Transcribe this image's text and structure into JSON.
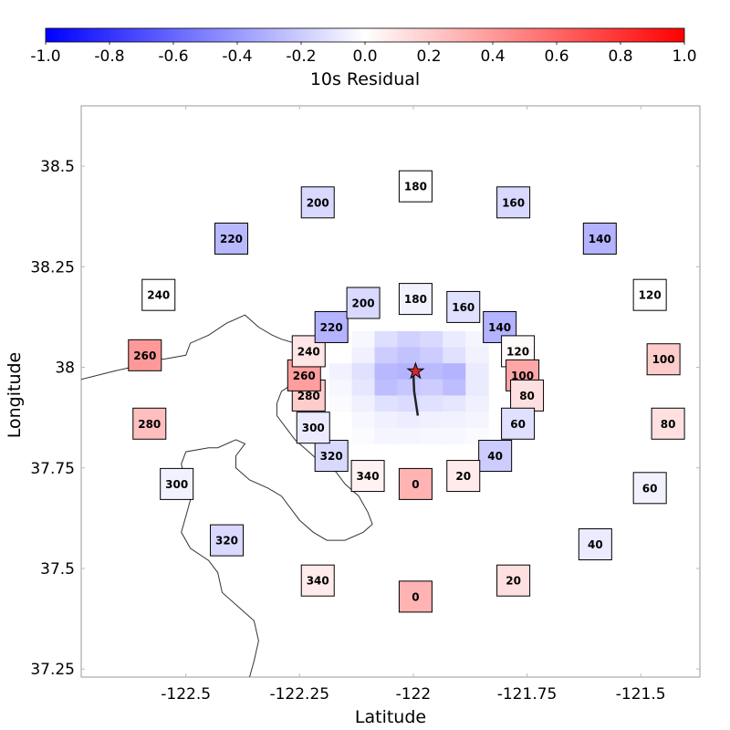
{
  "chart_data": {
    "type": "heatmap",
    "colorbar": {
      "label": "10s Residual",
      "range": [
        -1.0,
        1.0
      ],
      "ticks": [
        "-1.0",
        "-0.8",
        "-0.6",
        "-0.4",
        "-0.2",
        "0.0",
        "0.2",
        "0.4",
        "0.6",
        "0.8",
        "1.0"
      ],
      "colors": {
        "low": "#0000ff",
        "mid": "#ffffff",
        "high": "#ff0000"
      },
      "placement": "top"
    },
    "xlabel": "Latitude",
    "ylabel": "Longitude",
    "xlim": [
      -122.73,
      -121.37
    ],
    "ylim": [
      37.23,
      38.65
    ],
    "xticks": [
      {
        "value": -122.5,
        "label": "-122.5"
      },
      {
        "value": -122.25,
        "label": "-122.25"
      },
      {
        "value": -122.0,
        "label": "-122"
      },
      {
        "value": -121.75,
        "label": "-121.75"
      },
      {
        "value": -121.5,
        "label": "-121.5"
      }
    ],
    "yticks": [
      {
        "value": 38.5,
        "label": "38.5"
      },
      {
        "value": 38.25,
        "label": "38.25"
      },
      {
        "value": 38.0,
        "label": "38"
      },
      {
        "value": 37.75,
        "label": "37.75"
      },
      {
        "value": 37.5,
        "label": "37.5"
      },
      {
        "value": 37.25,
        "label": "37.25"
      }
    ],
    "epicenter": {
      "lon": -121.995,
      "lat": 37.99,
      "color": "#d62728"
    },
    "fault_trace": [
      [
        -122.0,
        37.99
      ],
      [
        -121.998,
        37.94
      ],
      [
        -121.99,
        37.88
      ]
    ],
    "coastline": [
      [
        -122.73,
        37.97
      ],
      [
        -122.66,
        37.99
      ],
      [
        -122.62,
        38.0
      ],
      [
        -122.58,
        38.03
      ],
      [
        -122.55,
        38.02
      ],
      [
        -122.5,
        38.03
      ],
      [
        -122.49,
        38.06
      ],
      [
        -122.45,
        38.08
      ],
      [
        -122.41,
        38.11
      ],
      [
        -122.37,
        38.13
      ],
      [
        -122.34,
        38.1
      ],
      [
        -122.31,
        38.08
      ],
      [
        -122.29,
        38.07
      ],
      [
        -122.26,
        38.06
      ],
      [
        -122.24,
        38.07
      ],
      [
        -122.21,
        38.07
      ],
      [
        -122.2,
        38.05
      ],
      [
        -122.23,
        38.04
      ],
      [
        -122.25,
        38.03
      ],
      [
        -122.25,
        38.01
      ],
      [
        -122.24,
        37.99
      ],
      [
        -122.25,
        37.97
      ],
      [
        -122.29,
        37.94
      ],
      [
        -122.3,
        37.91
      ],
      [
        -122.3,
        37.88
      ],
      [
        -122.28,
        37.85
      ],
      [
        -122.26,
        37.82
      ],
      [
        -122.23,
        37.79
      ],
      [
        -122.2,
        37.76
      ],
      [
        -122.17,
        37.74
      ],
      [
        -122.15,
        37.71
      ],
      [
        -122.12,
        37.68
      ],
      [
        -122.1,
        37.64
      ],
      [
        -122.09,
        37.61
      ],
      [
        -122.11,
        37.59
      ],
      [
        -122.15,
        37.57
      ],
      [
        -122.19,
        37.57
      ],
      [
        -122.22,
        37.59
      ],
      [
        -122.25,
        37.62
      ],
      [
        -122.27,
        37.65
      ],
      [
        -122.29,
        37.68
      ],
      [
        -122.32,
        37.7
      ],
      [
        -122.36,
        37.72
      ],
      [
        -122.39,
        37.75
      ],
      [
        -122.39,
        37.78
      ],
      [
        -122.37,
        37.81
      ],
      [
        -122.39,
        37.82
      ],
      [
        -122.43,
        37.8
      ],
      [
        -122.45,
        37.8
      ],
      [
        -122.5,
        37.79
      ],
      [
        -122.51,
        37.76
      ],
      [
        -122.5,
        37.71
      ],
      [
        -122.49,
        37.67
      ],
      [
        -122.5,
        37.63
      ],
      [
        -122.51,
        37.59
      ],
      [
        -122.49,
        37.55
      ],
      [
        -122.45,
        37.52
      ],
      [
        -122.43,
        37.49
      ],
      [
        -122.42,
        37.44
      ],
      [
        -122.39,
        37.41
      ],
      [
        -122.35,
        37.37
      ],
      [
        -122.34,
        37.32
      ],
      [
        -122.35,
        37.27
      ],
      [
        -122.36,
        37.23
      ]
    ],
    "grid": [
      {
        "lon": -122.11,
        "lat": 38.07,
        "value": -0.03
      },
      {
        "lon": -122.06,
        "lat": 38.07,
        "value": -0.13
      },
      {
        "lon": -122.01,
        "lat": 38.07,
        "value": -0.18
      },
      {
        "lon": -121.96,
        "lat": 38.07,
        "value": -0.15
      },
      {
        "lon": -121.91,
        "lat": 38.07,
        "value": -0.08
      },
      {
        "lon": -121.86,
        "lat": 38.07,
        "value": -0.04
      },
      {
        "lon": -122.11,
        "lat": 38.03,
        "value": -0.06
      },
      {
        "lon": -122.06,
        "lat": 38.03,
        "value": -0.2
      },
      {
        "lon": -122.01,
        "lat": 38.03,
        "value": -0.24
      },
      {
        "lon": -121.96,
        "lat": 38.03,
        "value": -0.2
      },
      {
        "lon": -121.91,
        "lat": 38.03,
        "value": -0.12
      },
      {
        "lon": -121.86,
        "lat": 38.03,
        "value": -0.05
      },
      {
        "lon": -122.16,
        "lat": 37.99,
        "value": -0.05
      },
      {
        "lon": -122.11,
        "lat": 37.99,
        "value": -0.12
      },
      {
        "lon": -122.06,
        "lat": 37.99,
        "value": -0.28
      },
      {
        "lon": -122.01,
        "lat": 37.99,
        "value": -0.3
      },
      {
        "lon": -121.96,
        "lat": 37.99,
        "value": -0.27
      },
      {
        "lon": -121.91,
        "lat": 37.99,
        "value": -0.3
      },
      {
        "lon": -121.86,
        "lat": 37.99,
        "value": -0.08
      },
      {
        "lon": -122.16,
        "lat": 37.95,
        "value": -0.03
      },
      {
        "lon": -122.11,
        "lat": 37.95,
        "value": -0.1
      },
      {
        "lon": -122.06,
        "lat": 37.95,
        "value": -0.26
      },
      {
        "lon": -122.01,
        "lat": 37.95,
        "value": -0.22
      },
      {
        "lon": -121.96,
        "lat": 37.95,
        "value": -0.2
      },
      {
        "lon": -121.91,
        "lat": 37.95,
        "value": -0.26
      },
      {
        "lon": -121.86,
        "lat": 37.95,
        "value": -0.08
      },
      {
        "lon": -122.16,
        "lat": 37.91,
        "value": -0.02
      },
      {
        "lon": -122.11,
        "lat": 37.91,
        "value": -0.06
      },
      {
        "lon": -122.06,
        "lat": 37.91,
        "value": -0.12
      },
      {
        "lon": -122.01,
        "lat": 37.91,
        "value": -0.14
      },
      {
        "lon": -121.96,
        "lat": 37.91,
        "value": -0.12
      },
      {
        "lon": -121.91,
        "lat": 37.91,
        "value": -0.1
      },
      {
        "lon": -121.86,
        "lat": 37.91,
        "value": -0.06
      },
      {
        "lon": -122.11,
        "lat": 37.87,
        "value": -0.03
      },
      {
        "lon": -122.06,
        "lat": 37.87,
        "value": -0.06
      },
      {
        "lon": -122.01,
        "lat": 37.87,
        "value": -0.07
      },
      {
        "lon": -121.96,
        "lat": 37.87,
        "value": -0.06
      },
      {
        "lon": -121.91,
        "lat": 37.87,
        "value": -0.05
      },
      {
        "lon": -121.86,
        "lat": 37.87,
        "value": -0.04
      },
      {
        "lon": -122.11,
        "lat": 37.83,
        "value": -0.02
      },
      {
        "lon": -122.06,
        "lat": 37.83,
        "value": -0.04
      },
      {
        "lon": -122.01,
        "lat": 37.83,
        "value": -0.04
      },
      {
        "lon": -121.96,
        "lat": 37.83,
        "value": -0.03
      },
      {
        "lon": -121.91,
        "lat": 37.83,
        "value": -0.03
      },
      {
        "lon": -121.86,
        "lat": 37.83,
        "value": -0.02
      }
    ],
    "stations": [
      {
        "label": "180",
        "lon": -121.995,
        "lat": 38.45,
        "value": 0.0
      },
      {
        "label": "160",
        "lon": -121.78,
        "lat": 38.41,
        "value": -0.15
      },
      {
        "label": "140",
        "lon": -121.59,
        "lat": 38.32,
        "value": -0.3
      },
      {
        "label": "120",
        "lon": -121.48,
        "lat": 38.18,
        "value": 0.0
      },
      {
        "label": "100",
        "lon": -121.45,
        "lat": 38.02,
        "value": 0.2
      },
      {
        "label": "80",
        "lon": -121.44,
        "lat": 37.86,
        "value": 0.12
      },
      {
        "label": "60",
        "lon": -121.48,
        "lat": 37.7,
        "value": -0.05
      },
      {
        "lon": -121.6,
        "lat": 37.56,
        "label": "40",
        "value": -0.08
      },
      {
        "label": "20",
        "lon": -121.78,
        "lat": 37.47,
        "value": 0.12
      },
      {
        "label": "0",
        "lon": -121.995,
        "lat": 37.43,
        "value": 0.3
      },
      {
        "label": "340",
        "lon": -122.21,
        "lat": 37.47,
        "value": 0.08
      },
      {
        "label": "320",
        "lon": -122.41,
        "lat": 37.57,
        "value": -0.15
      },
      {
        "label": "300",
        "lon": -122.52,
        "lat": 37.71,
        "value": -0.05
      },
      {
        "label": "280",
        "lon": -122.58,
        "lat": 37.86,
        "value": 0.25
      },
      {
        "label": "260",
        "lon": -122.59,
        "lat": 38.03,
        "value": 0.4
      },
      {
        "label": "240",
        "lon": -122.56,
        "lat": 38.18,
        "value": 0.0
      },
      {
        "label": "220",
        "lon": -122.4,
        "lat": 38.32,
        "value": -0.28
      },
      {
        "label": "200",
        "lon": -122.21,
        "lat": 38.41,
        "value": -0.15
      },
      {
        "label": "180",
        "lon": -121.995,
        "lat": 38.17,
        "value": -0.05
      },
      {
        "label": "160",
        "lon": -121.89,
        "lat": 38.15,
        "value": -0.12
      },
      {
        "label": "140",
        "lon": -121.81,
        "lat": 38.1,
        "value": -0.3
      },
      {
        "label": "120",
        "lon": -121.77,
        "lat": 38.04,
        "value": 0.02
      },
      {
        "label": "100",
        "lon": -121.76,
        "lat": 37.98,
        "value": 0.35
      },
      {
        "label": "80",
        "lon": -121.75,
        "lat": 37.93,
        "value": 0.12
      },
      {
        "label": "60",
        "lon": -121.77,
        "lat": 37.86,
        "value": -0.12
      },
      {
        "label": "40",
        "lon": -121.82,
        "lat": 37.78,
        "value": -0.2
      },
      {
        "label": "20",
        "lon": -121.89,
        "lat": 37.73,
        "value": 0.08
      },
      {
        "label": "0",
        "lon": -121.995,
        "lat": 37.71,
        "value": 0.3
      },
      {
        "label": "340",
        "lon": -122.1,
        "lat": 37.73,
        "value": 0.05
      },
      {
        "label": "320",
        "lon": -122.18,
        "lat": 37.78,
        "value": -0.15
      },
      {
        "label": "300",
        "lon": -122.22,
        "lat": 37.85,
        "value": -0.08
      },
      {
        "label": "280",
        "lon": -122.23,
        "lat": 37.93,
        "value": 0.2
      },
      {
        "label": "260",
        "lon": -122.24,
        "lat": 37.98,
        "value": 0.38
      },
      {
        "label": "240",
        "lon": -122.23,
        "lat": 38.04,
        "value": 0.1
      },
      {
        "label": "220",
        "lon": -122.18,
        "lat": 38.1,
        "value": -0.3
      },
      {
        "label": "200",
        "lon": -122.11,
        "lat": 38.16,
        "value": -0.15
      }
    ]
  }
}
